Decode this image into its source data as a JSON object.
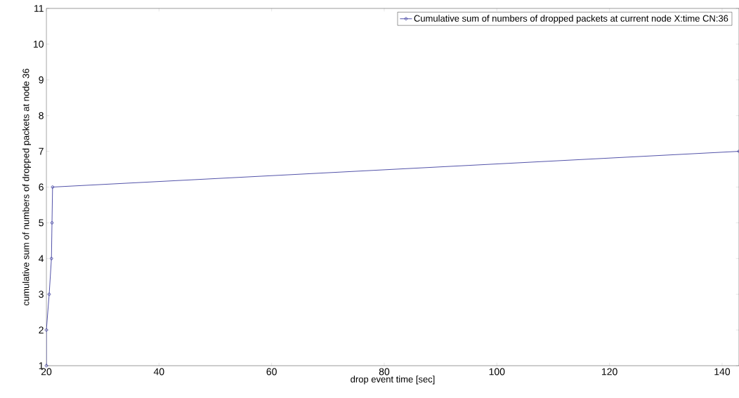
{
  "chart_data": {
    "type": "line",
    "xlabel": "drop event time [sec]",
    "ylabel": "cumulative sum of numbers of dropped packets at node 36",
    "series": [
      {
        "name": "Cumulative sum of numbers of dropped packets at current node X:time CN:36",
        "color": "#3f3f9f",
        "x": [
          20,
          20,
          20.5,
          20.9,
          21,
          21.1,
          143
        ],
        "values": [
          1,
          2,
          3,
          4,
          5,
          6,
          7
        ]
      }
    ],
    "xlim": [
      20,
      143
    ],
    "ylim": [
      1,
      11
    ],
    "xticks": [
      20,
      40,
      60,
      80,
      100,
      120,
      140
    ],
    "yticks": [
      1,
      2,
      3,
      4,
      5,
      6,
      7,
      8,
      9,
      10,
      11
    ],
    "marker": "circle",
    "line_style": "solid",
    "legend": "top right",
    "grid": false
  }
}
